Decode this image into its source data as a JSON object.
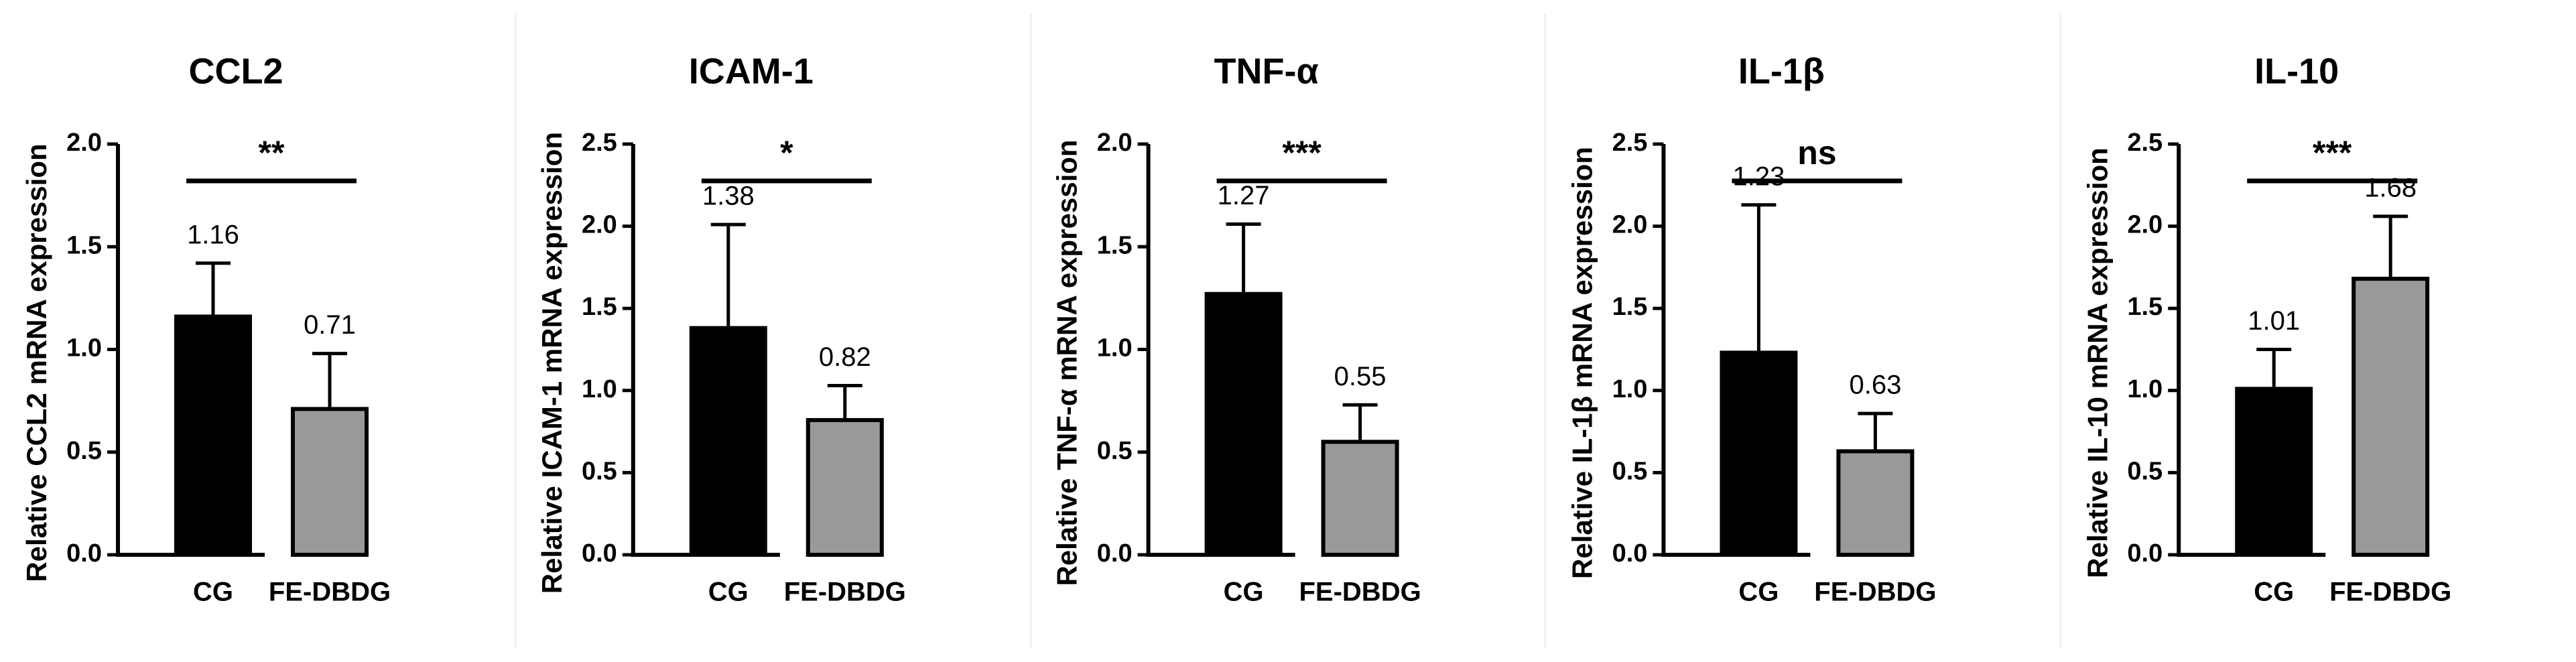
{
  "chart_data": [
    {
      "type": "bar",
      "title": "CCL2",
      "y_label": "Relative CCL2 mRNA expression",
      "significance": "**",
      "categories": [
        "CG",
        "FE-DBDG"
      ],
      "values": [
        1.16,
        0.71
      ],
      "errors": [
        0.26,
        0.27
      ],
      "colors": [
        "#000000",
        "#999999"
      ],
      "ylim": [
        0,
        2
      ],
      "yticks": [
        {
          "value": 0,
          "label": "0.0"
        },
        0.5,
        {
          "value": 1,
          "label": "1.0"
        },
        1.5,
        {
          "value": 2,
          "label": "2.0"
        }
      ]
    },
    {
      "type": "bar",
      "title": "ICAM-1",
      "y_label": "Relative ICAM-1 mRNA expression",
      "significance": "*",
      "categories": [
        "CG",
        "FE-DBDG"
      ],
      "values": [
        1.38,
        0.82
      ],
      "errors": [
        0.63,
        0.21
      ],
      "colors": [
        "#000000",
        "#999999"
      ],
      "ylim": [
        0,
        2.5
      ],
      "yticks": [
        {
          "value": 0,
          "label": "0.0"
        },
        0.5,
        {
          "value": 1,
          "label": "1.0"
        },
        1.5,
        {
          "value": 2,
          "label": "2.0"
        },
        2.5
      ]
    },
    {
      "type": "bar",
      "title": "TNF-α",
      "y_label": "Relative TNF-α mRNA expression",
      "significance": "***",
      "categories": [
        "CG",
        "FE-DBDG"
      ],
      "values": [
        1.27,
        0.55
      ],
      "errors": [
        0.34,
        0.18
      ],
      "colors": [
        "#000000",
        "#999999"
      ],
      "ylim": [
        0,
        2
      ],
      "yticks": [
        {
          "value": 0,
          "label": "0.0"
        },
        0.5,
        {
          "value": 1,
          "label": "1.0"
        },
        1.5,
        {
          "value": 2,
          "label": "2.0"
        }
      ]
    },
    {
      "type": "bar",
      "title": "IL-1β",
      "y_label": "Relative IL-1β mRNA expression",
      "significance": "ns",
      "categories": [
        "CG",
        "FE-DBDG"
      ],
      "values": [
        1.23,
        0.63
      ],
      "errors": [
        0.9,
        0.23
      ],
      "colors": [
        "#000000",
        "#999999"
      ],
      "ylim": [
        0,
        2.5
      ],
      "yticks": [
        {
          "value": 0,
          "label": "0.0"
        },
        0.5,
        {
          "value": 1,
          "label": "1.0"
        },
        1.5,
        {
          "value": 2,
          "label": "2.0"
        },
        2.5
      ]
    },
    {
      "type": "bar",
      "title": "IL-10",
      "y_label": "Relative IL-10 mRNA expression",
      "significance": "***",
      "categories": [
        "CG",
        "FE-DBDG"
      ],
      "values": [
        1.01,
        1.68
      ],
      "errors": [
        0.24,
        0.38
      ],
      "colors": [
        "#000000",
        "#999999"
      ],
      "ylim": [
        0,
        2.5
      ],
      "yticks": [
        {
          "value": 0,
          "label": "0.0"
        },
        0.5,
        {
          "value": 1,
          "label": "1.0"
        },
        1.5,
        {
          "value": 2,
          "label": "2.0"
        },
        2.5
      ]
    }
  ]
}
